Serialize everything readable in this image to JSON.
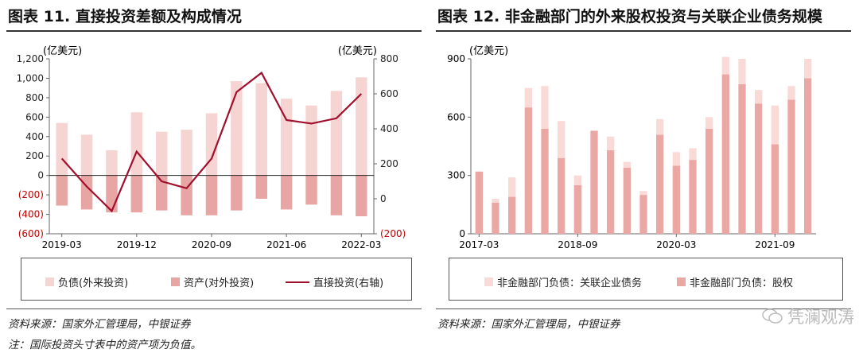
{
  "chart_data": [
    {
      "type": "bar",
      "title": "图表 11. 直接投资差额及构成情况",
      "categories": [
        "2019-03",
        "2019-06",
        "2019-09",
        "2019-12",
        "2020-03",
        "2020-06",
        "2020-09",
        "2020-12",
        "2021-03",
        "2021-06",
        "2021-09",
        "2021-12",
        "2022-03"
      ],
      "x_tick_labels": [
        "2019-03",
        "2019-12",
        "2020-09",
        "2021-06",
        "2022-03"
      ],
      "left_axis": {
        "unit": "(亿美元)",
        "ylim": [
          -600,
          1200
        ],
        "ticks": [
          "1,200",
          "1,000",
          "800",
          "600",
          "400",
          "200",
          "0",
          "(200)",
          "(400)",
          "(600)"
        ],
        "tick_values": [
          1200,
          1000,
          800,
          600,
          400,
          200,
          0,
          -200,
          -400,
          -600
        ]
      },
      "right_axis": {
        "unit": "(亿美元)",
        "ylim": [
          -200,
          800
        ],
        "ticks": [
          "800",
          "600",
          "400",
          "200",
          "0",
          "(200)"
        ],
        "tick_values": [
          800,
          600,
          400,
          200,
          0,
          -200
        ]
      },
      "series": [
        {
          "name": "负债(外来投资)",
          "type": "bar",
          "axis": "left",
          "color": "#f6d4d2",
          "values": [
            540,
            420,
            260,
            650,
            450,
            470,
            640,
            970,
            950,
            790,
            720,
            870,
            1010
          ]
        },
        {
          "name": "资产(对外投资)",
          "type": "bar",
          "axis": "left",
          "color": "#e7a6a3",
          "values": [
            -310,
            -350,
            -380,
            -380,
            -360,
            -410,
            -410,
            -360,
            -240,
            -350,
            -300,
            -410,
            -420
          ]
        },
        {
          "name": "直接投资(右轴)",
          "type": "line",
          "axis": "right",
          "color": "#a0102c",
          "values": [
            230,
            70,
            -70,
            270,
            100,
            60,
            230,
            610,
            720,
            450,
            430,
            460,
            600
          ]
        }
      ],
      "legend": {
        "position": "bottom"
      }
    },
    {
      "type": "bar",
      "title": "图表 12. 非金融部门的外来股权投资与关联企业债务规模",
      "categories": [
        "2017-03",
        "2017-06",
        "2017-09",
        "2017-12",
        "2018-03",
        "2018-06",
        "2018-09",
        "2018-12",
        "2019-03",
        "2019-06",
        "2019-09",
        "2019-12",
        "2020-03",
        "2020-06",
        "2020-09",
        "2020-12",
        "2021-03",
        "2021-06",
        "2021-09",
        "2021-12",
        "2022-03"
      ],
      "x_tick_labels": [
        "2017-03",
        "2018-09",
        "2020-03",
        "2021-09"
      ],
      "left_axis": {
        "unit": "(亿美元)",
        "ylim": [
          0,
          900
        ],
        "ticks": [
          "900",
          "600",
          "300",
          "0"
        ],
        "tick_values": [
          900,
          600,
          300,
          0
        ]
      },
      "stacked": true,
      "series": [
        {
          "name": "非金融部门负债：股权",
          "color": "#eaa7a4",
          "values": [
            320,
            160,
            190,
            650,
            540,
            390,
            250,
            530,
            430,
            340,
            200,
            510,
            350,
            380,
            540,
            820,
            770,
            670,
            460,
            690,
            800
          ]
        },
        {
          "name": "非金融部门负债：关联企业债务",
          "color": "#f9dad7",
          "values": [
            0,
            20,
            100,
            100,
            220,
            190,
            50,
            0,
            70,
            30,
            20,
            80,
            70,
            60,
            60,
            90,
            130,
            70,
            200,
            70,
            100
          ]
        }
      ],
      "legend": {
        "position": "bottom"
      }
    }
  ],
  "notes": {
    "left_source": "资料来源：国家外汇管理局，中银证券",
    "left_note": "注：国际投资头寸表中的资产项为负值。",
    "right_source": "资料来源：国家外汇管理局，中银证券"
  },
  "watermark": {
    "text": "凭澜观涛"
  }
}
